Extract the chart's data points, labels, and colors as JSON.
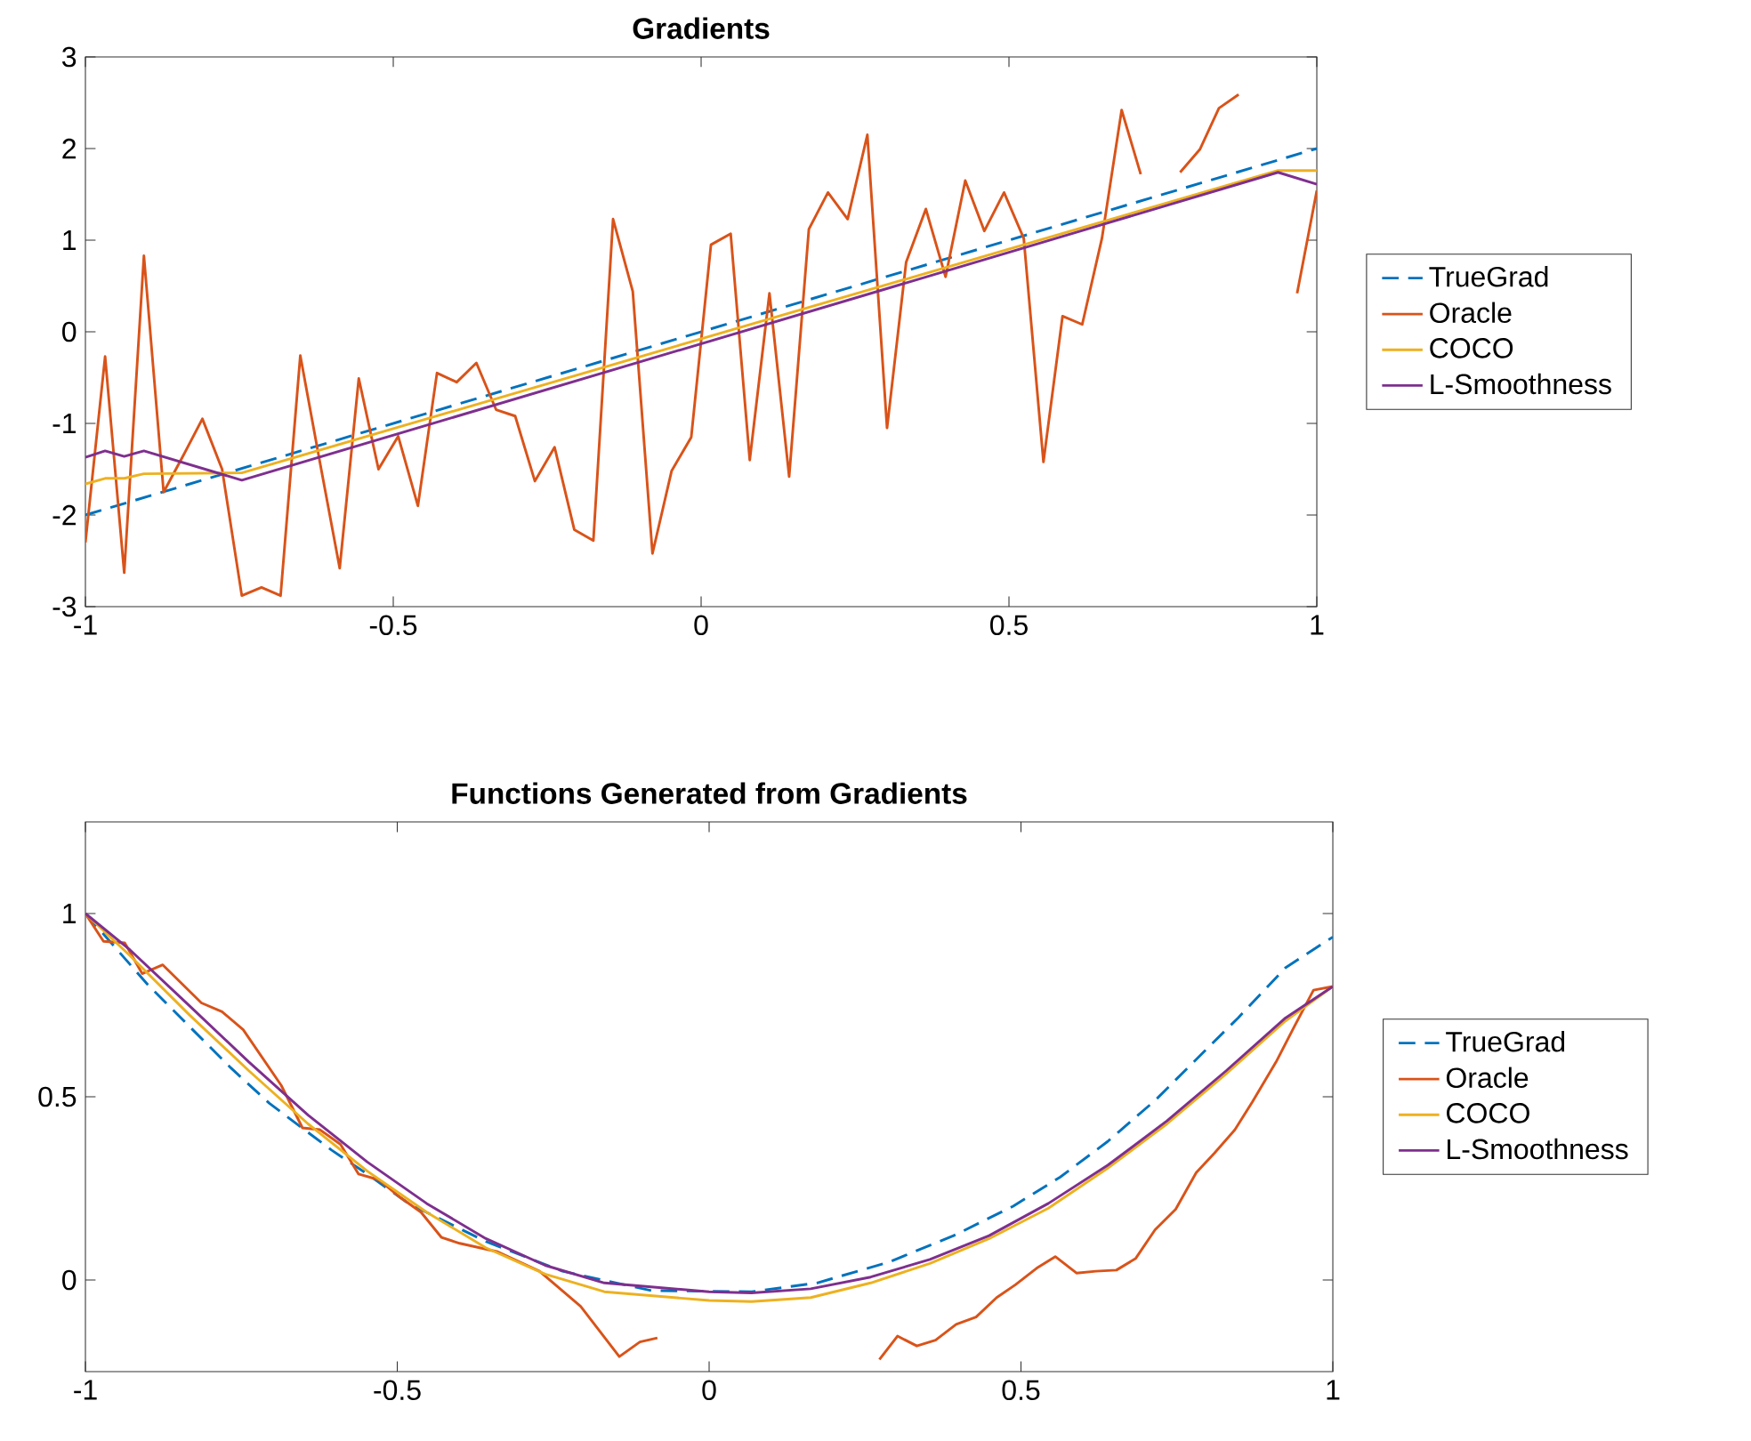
{
  "chart_data": [
    {
      "type": "line",
      "title": "Gradients",
      "xlim": [
        -1,
        1
      ],
      "ylim": [
        -3,
        3
      ],
      "xticks": [
        -1,
        -0.5,
        0,
        0.5,
        1
      ],
      "yticks": [
        -3,
        -2,
        -1,
        0,
        1,
        2,
        3
      ],
      "legend": "right",
      "series": [
        {
          "name": "TrueGrad",
          "color": "#0072bd",
          "line_style": "dashed",
          "x": [
            -1,
            1
          ],
          "values": [
            -2,
            2
          ]
        },
        {
          "name": "Oracle",
          "color": "#d95319",
          "x": [
            -1,
            -0.968,
            -0.937,
            -0.905,
            -0.873,
            -0.841,
            -0.81,
            -0.778,
            -0.746,
            -0.714,
            -0.683,
            -0.651,
            -0.619,
            -0.587,
            -0.556,
            -0.524,
            -0.492,
            -0.46,
            -0.429,
            -0.397,
            -0.365,
            -0.333,
            -0.302,
            -0.27,
            -0.238,
            -0.206,
            -0.175,
            -0.143,
            -0.111,
            -0.079,
            -0.048,
            -0.016,
            0.016,
            0.048,
            0.079,
            0.111,
            0.143,
            0.175,
            0.206,
            0.238,
            0.27,
            0.302,
            0.333,
            0.365,
            0.397,
            0.429,
            0.46,
            0.492,
            0.524,
            0.556,
            0.587,
            0.619,
            0.651,
            0.683,
            0.714,
            0.746,
            0.778,
            0.81,
            0.841,
            0.873,
            0.905,
            0.937,
            0.968,
            1
          ],
          "values": [
            -2.3,
            -0.27,
            -2.63,
            0.83,
            -1.75,
            -1.35,
            -0.95,
            -1.5,
            -2.88,
            -2.79,
            -2.88,
            -0.26,
            -1.43,
            -2.58,
            -0.51,
            -1.5,
            -1.14,
            -1.9,
            -0.45,
            -0.55,
            -0.34,
            -0.85,
            -0.92,
            -1.63,
            -1.26,
            -2.16,
            -2.28,
            1.23,
            0.44,
            -2.42,
            -1.52,
            -1.15,
            0.95,
            1.07,
            -1.4,
            0.42,
            -1.58,
            1.12,
            1.52,
            1.23,
            2.15,
            -1.05,
            0.76,
            1.34,
            0.6,
            1.65,
            1.1,
            1.52,
            1.02,
            -1.42,
            0.17,
            0.08,
            1.02,
            2.42,
            1.72,
            null,
            1.74,
            1.99,
            2.44,
            2.59,
            null,
            null,
            0.42,
            1.54
          ]
        },
        {
          "name": "COCO",
          "color": "#edb120",
          "x": [
            -1,
            -0.968,
            -0.937,
            -0.905,
            -0.746,
            0.937,
            1
          ],
          "values": [
            -1.66,
            -1.6,
            -1.6,
            -1.55,
            -1.54,
            1.76,
            1.76
          ]
        },
        {
          "name": "L-Smoothness",
          "color": "#7e2f8e",
          "x": [
            -1,
            -0.968,
            -0.937,
            -0.905,
            -0.746,
            0.937,
            1
          ],
          "values": [
            -1.37,
            -1.3,
            -1.36,
            -1.3,
            -1.62,
            1.74,
            1.61
          ]
        }
      ]
    },
    {
      "type": "line",
      "title": "Functions Generated from Gradients",
      "xlim": [
        -1,
        1
      ],
      "ylim": [
        -0.25,
        1.25
      ],
      "xticks": [
        -1,
        -0.5,
        0,
        0.5,
        1
      ],
      "yticks": [
        0,
        0.5,
        1
      ],
      "legend": "right",
      "series": [
        {
          "name": "TrueGrad",
          "color": "#0072bd",
          "line_style": "dashed",
          "x": [
            -1,
            -0.899,
            -0.828,
            -0.767,
            -0.705,
            -0.605,
            -0.548,
            -0.482,
            -0.358,
            -0.235,
            -0.092,
            0.068,
            0.173,
            0.287,
            0.392,
            0.487,
            0.563,
            0.639,
            0.715,
            0.791,
            0.848,
            0.924,
            1
          ],
          "values": [
            1,
            0.804,
            0.683,
            0.579,
            0.482,
            0.354,
            0.289,
            0.209,
            0.105,
            0.024,
            -0.029,
            -0.032,
            -0.008,
            0.048,
            0.121,
            0.201,
            0.281,
            0.378,
            0.49,
            0.619,
            0.715,
            0.852,
            0.936
          ]
        },
        {
          "name": "Oracle",
          "color": "#d95319",
          "x": [
            -1,
            -0.971,
            -0.937,
            -0.909,
            -0.876,
            -0.814,
            -0.781,
            -0.747,
            -0.686,
            -0.652,
            -0.624,
            -0.591,
            -0.562,
            -0.529,
            -0.495,
            -0.462,
            -0.429,
            -0.4,
            -0.339,
            -0.272,
            -0.206,
            -0.144,
            -0.111,
            -0.083,
            -0.04,
            0.1,
            0.244,
            0.273,
            0.302,
            0.333,
            0.363,
            0.396,
            0.428,
            0.461,
            0.491,
            0.525,
            0.555,
            0.589,
            0.62,
            0.653,
            0.684,
            0.715,
            0.748,
            0.781,
            0.81,
            0.843,
            0.871,
            0.909,
            0.938,
            0.969,
            1
          ],
          "values": [
            1,
            0.924,
            0.92,
            0.836,
            0.86,
            0.756,
            0.732,
            0.683,
            0.531,
            0.415,
            0.41,
            0.37,
            0.289,
            0.273,
            0.225,
            0.185,
            0.116,
            0.1,
            0.077,
            0.024,
            -0.072,
            -0.209,
            -0.169,
            -0.158,
            null,
            null,
            null,
            -0.217,
            -0.153,
            -0.18,
            -0.164,
            -0.121,
            -0.101,
            -0.048,
            -0.013,
            0.032,
            0.064,
            0.019,
            0.024,
            0.027,
            0.059,
            0.137,
            0.193,
            0.293,
            0.346,
            0.41,
            0.486,
            0.595,
            0.691,
            0.791,
            0.801
          ]
        },
        {
          "name": "COCO",
          "color": "#edb120",
          "x": [
            -1,
            -0.928,
            -0.833,
            -0.738,
            -0.643,
            -0.548,
            -0.453,
            -0.358,
            -0.263,
            -0.168,
            0,
            0.068,
            0.163,
            0.259,
            0.354,
            0.449,
            0.544,
            0.639,
            0.734,
            0.829,
            0.924,
            1
          ],
          "values": [
            1,
            0.884,
            0.723,
            0.571,
            0.426,
            0.297,
            0.185,
            0.088,
            0.016,
            -0.032,
            -0.056,
            -0.059,
            -0.048,
            -0.008,
            0.045,
            0.113,
            0.196,
            0.305,
            0.426,
            0.563,
            0.707,
            0.801
          ]
        },
        {
          "name": "L-Smoothness",
          "color": "#7e2f8e",
          "x": [
            -1,
            -0.928,
            -0.833,
            -0.738,
            -0.643,
            -0.548,
            -0.453,
            -0.358,
            -0.263,
            -0.168,
            0,
            0.068,
            0.163,
            0.259,
            0.354,
            0.449,
            0.544,
            0.639,
            0.734,
            0.829,
            0.924,
            1
          ],
          "values": [
            1,
            0.9,
            0.748,
            0.595,
            0.45,
            0.322,
            0.209,
            0.113,
            0.04,
            -0.008,
            -0.032,
            -0.035,
            -0.024,
            0.008,
            0.056,
            0.121,
            0.209,
            0.313,
            0.434,
            0.571,
            0.715,
            0.801
          ]
        }
      ]
    }
  ]
}
